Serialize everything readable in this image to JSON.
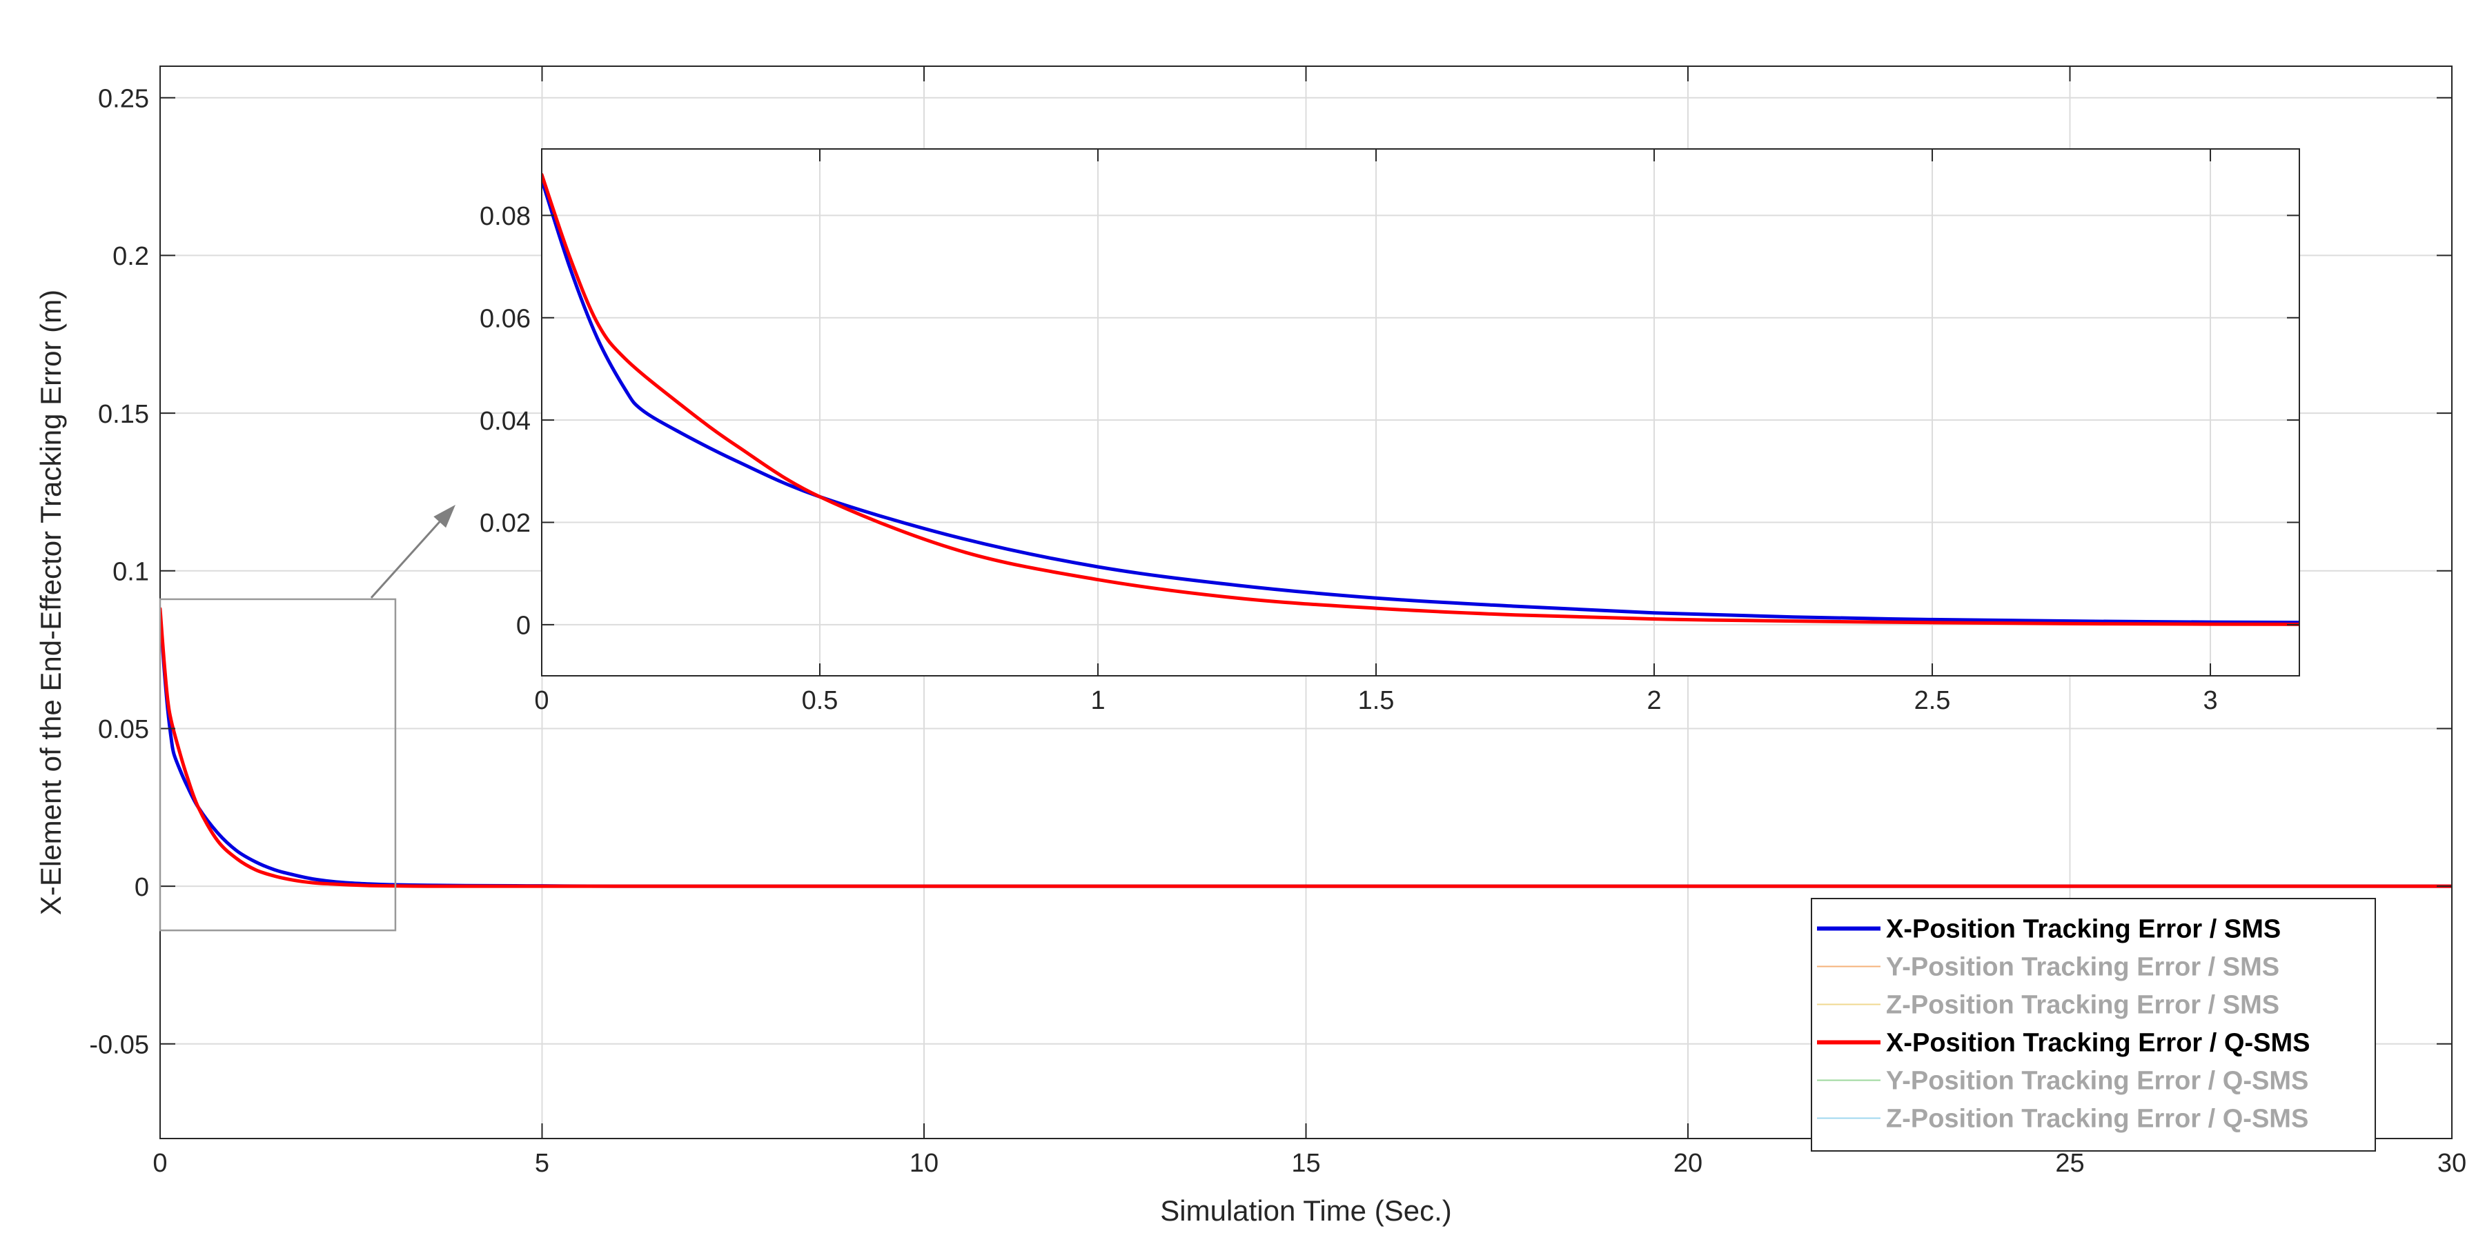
{
  "chart_data": [
    {
      "type": "line",
      "role": "main",
      "xlabel": "Simulation Time (Sec.)",
      "ylabel": "X-Element of the End-Effector Tracking Error (m)",
      "xlim": [
        0,
        30
      ],
      "ylim": [
        -0.08,
        0.26
      ],
      "xticks": [
        0,
        5,
        10,
        15,
        20,
        25,
        30
      ],
      "xtick_labels": [
        "0",
        "5",
        "10",
        "15",
        "20",
        "25",
        "30"
      ],
      "yticks": [
        -0.05,
        0,
        0.05,
        0.1,
        0.15,
        0.2,
        0.25
      ],
      "ytick_labels": [
        "-0.05",
        "0",
        "0.05",
        "0.1",
        "0.15",
        "0.2",
        "0.25"
      ],
      "grid": true,
      "legend_position": "bottom-right",
      "zoom_box": {
        "x": [
          0,
          3.08
        ],
        "y": [
          -0.014,
          0.091
        ]
      },
      "legend": [
        {
          "label": "X-Position Tracking Error / SMS",
          "color": "#0000e0",
          "active": true
        },
        {
          "label": "Y-Position Tracking Error / SMS",
          "color": "#f5b27a",
          "active": false
        },
        {
          "label": "Z-Position Tracking Error / SMS",
          "color": "#f0d890",
          "active": false
        },
        {
          "label": "X-Position Tracking Error / Q-SMS",
          "color": "#ff0000",
          "active": true
        },
        {
          "label": "Y-Position Tracking Error / Q-SMS",
          "color": "#9ed89e",
          "active": false
        },
        {
          "label": "Z-Position Tracking Error / Q-SMS",
          "color": "#9fd7ef",
          "active": false
        }
      ],
      "series": [
        {
          "name": "X-Position Tracking Error / SMS",
          "color": "#0000e0",
          "x": [
            0,
            0.05,
            0.1,
            0.15,
            0.18,
            0.25,
            0.35,
            0.5,
            0.75,
            1,
            1.25,
            1.5,
            1.75,
            2,
            2.25,
            2.5,
            2.75,
            3,
            3.5,
            4,
            5,
            6,
            8,
            10,
            12,
            14,
            16,
            18,
            20,
            22,
            24,
            26,
            28,
            30
          ],
          "y": [
            0.087,
            0.07,
            0.056,
            0.046,
            0.042,
            0.0375,
            0.032,
            0.025,
            0.017,
            0.0113,
            0.0077,
            0.0052,
            0.0036,
            0.0023,
            0.0015,
            0.001,
            0.0007,
            0.0005,
            0.0003,
            0.0002,
            0.0001,
            0,
            0,
            0,
            0,
            0,
            0,
            0,
            0,
            0,
            0,
            0,
            0,
            0
          ]
        },
        {
          "name": "X-Position Tracking Error / Q-SMS",
          "color": "#ff0000",
          "x": [
            0,
            0.05,
            0.1,
            0.15,
            0.25,
            0.35,
            0.5,
            0.75,
            1,
            1.25,
            1.5,
            1.75,
            2,
            2.25,
            2.5,
            2.75,
            3,
            3.5,
            4,
            5,
            6,
            8,
            10,
            12,
            14,
            16,
            18,
            20,
            22,
            24,
            26,
            28,
            30
          ],
          "y": [
            0.088,
            0.072,
            0.059,
            0.052,
            0.043,
            0.035,
            0.025,
            0.0145,
            0.0088,
            0.0052,
            0.0032,
            0.0019,
            0.0011,
            0.0007,
            0.0004,
            0.0002,
            0.0001,
            0,
            0,
            0,
            0,
            0,
            0,
            0,
            0,
            0,
            0,
            0,
            0,
            0,
            0,
            0,
            0
          ]
        }
      ]
    },
    {
      "type": "line",
      "role": "inset",
      "xlim": [
        0,
        3.16
      ],
      "ylim": [
        -0.01,
        0.093
      ],
      "xticks": [
        0,
        0.5,
        1,
        1.5,
        2,
        2.5,
        3
      ],
      "xtick_labels": [
        "0",
        "0.5",
        "1",
        "1.5",
        "2",
        "2.5",
        "3"
      ],
      "yticks": [
        0,
        0.02,
        0.04,
        0.06,
        0.08
      ],
      "ytick_labels": [
        "0",
        "0.02",
        "0.04",
        "0.06",
        "0.08"
      ],
      "grid": true,
      "series_ref": [
        "X-Position Tracking Error / SMS",
        "X-Position Tracking Error / Q-SMS"
      ]
    }
  ]
}
